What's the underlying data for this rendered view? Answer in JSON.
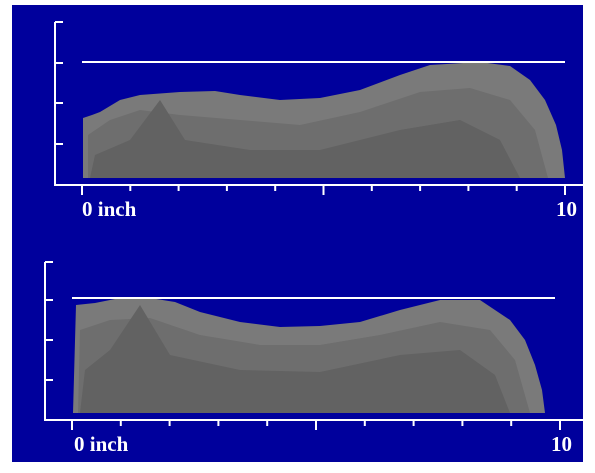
{
  "panels": [
    {
      "x_start_label": "0 inch",
      "x_end_label": "10"
    },
    {
      "x_start_label": "0 inch",
      "x_end_label": "10"
    }
  ]
}
